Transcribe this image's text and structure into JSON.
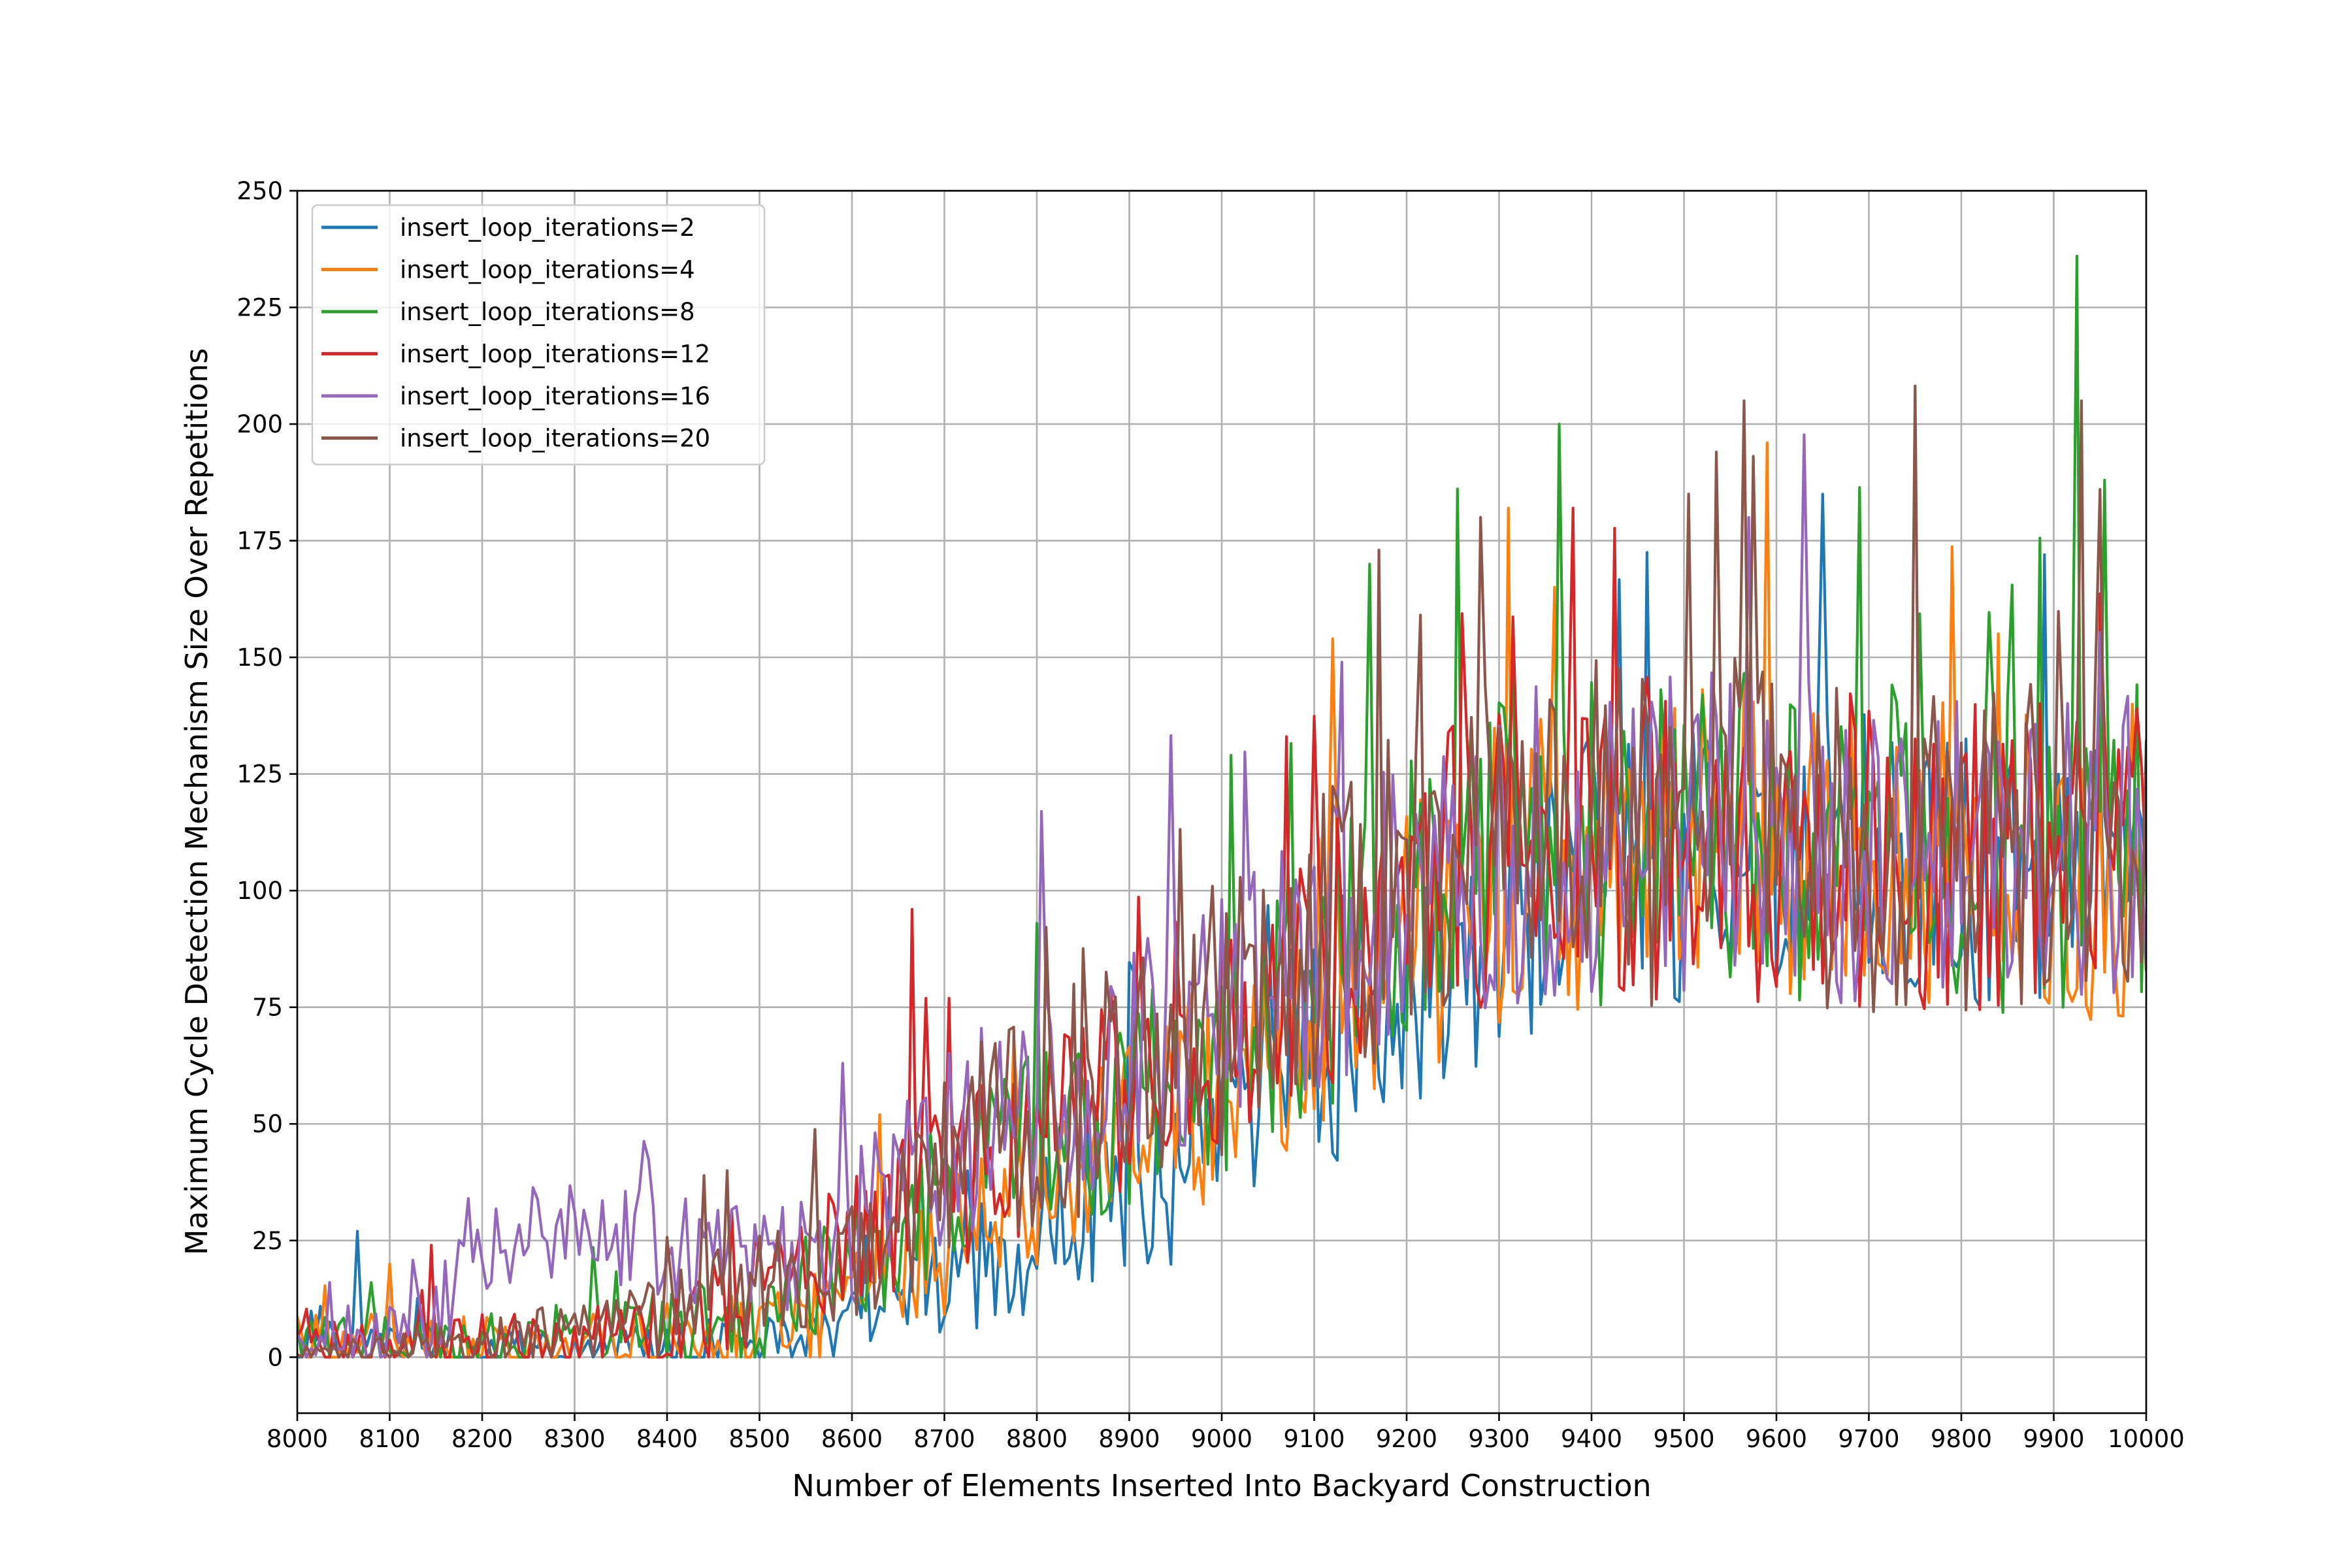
{
  "chart_data": {
    "type": "line",
    "title": "",
    "xlabel": "Number of Elements Inserted Into Backyard Construction",
    "ylabel": "Maximum Cycle Detection Mechanism Size Over Repetitions",
    "xlim": [
      8000,
      10000
    ],
    "ylim": [
      -12,
      250
    ],
    "x_ticks": [
      "8000",
      "8100",
      "8200",
      "8300",
      "8400",
      "8500",
      "8600",
      "8700",
      "8800",
      "8900",
      "9000",
      "9100",
      "9200",
      "9300",
      "9400",
      "9500",
      "9600",
      "9700",
      "9800",
      "9900",
      "10000"
    ],
    "y_ticks": [
      "0",
      "25",
      "50",
      "75",
      "100",
      "125",
      "150",
      "175",
      "200",
      "225",
      "250"
    ],
    "grid": true,
    "legend_position": "top-left",
    "x_step": 5,
    "series": [
      {
        "name": "insert_loop_iterations=2",
        "color": "#1f77b4",
        "anchors": [
          [
            8000,
            3
          ],
          [
            8100,
            2
          ],
          [
            8200,
            1
          ],
          [
            8300,
            1
          ],
          [
            8400,
            1
          ],
          [
            8500,
            2
          ],
          [
            8600,
            6
          ],
          [
            8650,
            10
          ],
          [
            8700,
            15
          ],
          [
            8750,
            22
          ],
          [
            8800,
            27
          ],
          [
            8850,
            33
          ],
          [
            8900,
            37
          ],
          [
            8950,
            42
          ],
          [
            9000,
            52
          ],
          [
            9050,
            60
          ],
          [
            9100,
            66
          ],
          [
            9150,
            73
          ],
          [
            9200,
            80
          ],
          [
            9250,
            88
          ],
          [
            9300,
            95
          ],
          [
            9350,
            100
          ],
          [
            9400,
            104
          ],
          [
            9500,
            107
          ],
          [
            9600,
            108
          ],
          [
            9700,
            106
          ],
          [
            9800,
            105
          ],
          [
            9900,
            104
          ],
          [
            10000,
            104
          ]
        ],
        "amp": [
          [
            8000,
            5
          ],
          [
            8160,
            5
          ],
          [
            8600,
            8
          ],
          [
            8700,
            14
          ],
          [
            9000,
            24
          ],
          [
            9300,
            32
          ],
          [
            10000,
            32
          ]
        ],
        "peaks": [
          [
            8065,
            27
          ],
          [
            9890,
            172
          ]
        ]
      },
      {
        "name": "insert_loop_iterations=4",
        "color": "#ff7f0e",
        "anchors": [
          [
            8000,
            3
          ],
          [
            8100,
            3
          ],
          [
            8200,
            2
          ],
          [
            8300,
            2
          ],
          [
            8400,
            3
          ],
          [
            8500,
            5
          ],
          [
            8600,
            12
          ],
          [
            8650,
            18
          ],
          [
            8700,
            24
          ],
          [
            8750,
            30
          ],
          [
            8800,
            36
          ],
          [
            8850,
            42
          ],
          [
            8900,
            47
          ],
          [
            8950,
            52
          ],
          [
            9000,
            60
          ],
          [
            9050,
            66
          ],
          [
            9100,
            74
          ],
          [
            9150,
            82
          ],
          [
            9200,
            90
          ],
          [
            9250,
            97
          ],
          [
            9300,
            103
          ],
          [
            9350,
            106
          ],
          [
            9400,
            108
          ],
          [
            9500,
            110
          ],
          [
            9600,
            110
          ],
          [
            9700,
            108
          ],
          [
            9800,
            107
          ],
          [
            9900,
            106
          ],
          [
            10000,
            106
          ]
        ],
        "amp": [
          [
            8000,
            6
          ],
          [
            8600,
            10
          ],
          [
            8700,
            15
          ],
          [
            9000,
            25
          ],
          [
            9300,
            34
          ],
          [
            10000,
            34
          ]
        ],
        "peaks": [
          [
            8100,
            20
          ],
          [
            8630,
            52
          ],
          [
            9120,
            154
          ],
          [
            9310,
            182
          ],
          [
            9590,
            196
          ]
        ]
      },
      {
        "name": "insert_loop_iterations=8",
        "color": "#2ca02c",
        "anchors": [
          [
            8000,
            3
          ],
          [
            8100,
            3
          ],
          [
            8200,
            2
          ],
          [
            8300,
            2
          ],
          [
            8400,
            4
          ],
          [
            8500,
            8
          ],
          [
            8600,
            18
          ],
          [
            8650,
            26
          ],
          [
            8700,
            34
          ],
          [
            8750,
            40
          ],
          [
            8800,
            46
          ],
          [
            8850,
            50
          ],
          [
            8900,
            54
          ],
          [
            8950,
            58
          ],
          [
            9000,
            65
          ],
          [
            9050,
            72
          ],
          [
            9100,
            80
          ],
          [
            9150,
            88
          ],
          [
            9200,
            96
          ],
          [
            9250,
            102
          ],
          [
            9300,
            106
          ],
          [
            9350,
            109
          ],
          [
            9400,
            110
          ],
          [
            9500,
            112
          ],
          [
            9600,
            112
          ],
          [
            9700,
            110
          ],
          [
            9800,
            109
          ],
          [
            9900,
            108
          ],
          [
            10000,
            108
          ]
        ],
        "amp": [
          [
            8000,
            6
          ],
          [
            8600,
            14
          ],
          [
            8700,
            18
          ],
          [
            9000,
            26
          ],
          [
            9300,
            35
          ],
          [
            10000,
            35
          ]
        ],
        "peaks": [
          [
            8080,
            16
          ],
          [
            8800,
            93
          ],
          [
            9010,
            129
          ],
          [
            9160,
            170
          ],
          [
            9365,
            200
          ],
          [
            9925,
            236
          ],
          [
            9955,
            188
          ]
        ]
      },
      {
        "name": "insert_loop_iterations=12",
        "color": "#d62728",
        "anchors": [
          [
            8000,
            2
          ],
          [
            8100,
            2
          ],
          [
            8200,
            2
          ],
          [
            8300,
            3
          ],
          [
            8400,
            6
          ],
          [
            8500,
            14
          ],
          [
            8600,
            24
          ],
          [
            8650,
            30
          ],
          [
            8700,
            36
          ],
          [
            8750,
            42
          ],
          [
            8800,
            48
          ],
          [
            8850,
            53
          ],
          [
            8900,
            58
          ],
          [
            8950,
            63
          ],
          [
            9000,
            72
          ],
          [
            9050,
            78
          ],
          [
            9100,
            86
          ],
          [
            9150,
            92
          ],
          [
            9200,
            99
          ],
          [
            9250,
            104
          ],
          [
            9300,
            107
          ],
          [
            9350,
            110
          ],
          [
            9400,
            111
          ],
          [
            9500,
            112
          ],
          [
            9600,
            111
          ],
          [
            9700,
            110
          ],
          [
            9800,
            109
          ],
          [
            9900,
            108
          ],
          [
            10000,
            107
          ]
        ],
        "amp": [
          [
            8000,
            6
          ],
          [
            8300,
            8
          ],
          [
            8600,
            14
          ],
          [
            8700,
            18
          ],
          [
            9000,
            26
          ],
          [
            9300,
            35
          ],
          [
            10000,
            35
          ]
        ],
        "peaks": [
          [
            8145,
            24
          ],
          [
            8665,
            96
          ],
          [
            9070,
            133
          ],
          [
            9380,
            182
          ]
        ]
      },
      {
        "name": "insert_loop_iterations=16",
        "color": "#9467bd",
        "anchors": [
          [
            8000,
            4
          ],
          [
            8100,
            4
          ],
          [
            8170,
            8
          ],
          [
            8180,
            26
          ],
          [
            8200,
            26
          ],
          [
            8300,
            26
          ],
          [
            8400,
            24
          ],
          [
            8500,
            22
          ],
          [
            8560,
            22
          ],
          [
            8600,
            28
          ],
          [
            8650,
            38
          ],
          [
            8700,
            44
          ],
          [
            8750,
            50
          ],
          [
            8800,
            54
          ],
          [
            8850,
            58
          ],
          [
            8900,
            62
          ],
          [
            8950,
            66
          ],
          [
            9000,
            74
          ],
          [
            9050,
            80
          ],
          [
            9100,
            86
          ],
          [
            9150,
            92
          ],
          [
            9200,
            98
          ],
          [
            9250,
            104
          ],
          [
            9300,
            108
          ],
          [
            9350,
            110
          ],
          [
            9400,
            111
          ],
          [
            9500,
            112
          ],
          [
            9600,
            112
          ],
          [
            9700,
            110
          ],
          [
            9800,
            109
          ],
          [
            9900,
            108
          ],
          [
            10000,
            108
          ]
        ],
        "amp": [
          [
            8000,
            6
          ],
          [
            8180,
            12
          ],
          [
            8560,
            12
          ],
          [
            8600,
            18
          ],
          [
            8700,
            22
          ],
          [
            9000,
            28
          ],
          [
            9300,
            35
          ],
          [
            10000,
            35
          ]
        ],
        "peaks": [
          [
            8035,
            16
          ],
          [
            8590,
            63
          ],
          [
            8805,
            117
          ],
          [
            9130,
            149
          ],
          [
            9570,
            180
          ]
        ]
      },
      {
        "name": "insert_loop_iterations=20",
        "color": "#8c564b",
        "anchors": [
          [
            8000,
            1
          ],
          [
            8100,
            1
          ],
          [
            8200,
            2
          ],
          [
            8300,
            6
          ],
          [
            8400,
            10
          ],
          [
            8500,
            14
          ],
          [
            8600,
            22
          ],
          [
            8650,
            30
          ],
          [
            8700,
            40
          ],
          [
            8750,
            46
          ],
          [
            8800,
            52
          ],
          [
            8850,
            56
          ],
          [
            8900,
            60
          ],
          [
            8950,
            65
          ],
          [
            9000,
            73
          ],
          [
            9050,
            80
          ],
          [
            9100,
            88
          ],
          [
            9150,
            95
          ],
          [
            9200,
            102
          ],
          [
            9250,
            106
          ],
          [
            9300,
            109
          ],
          [
            9350,
            111
          ],
          [
            9400,
            112
          ],
          [
            9500,
            113
          ],
          [
            9600,
            112
          ],
          [
            9700,
            111
          ],
          [
            9800,
            110
          ],
          [
            9900,
            109
          ],
          [
            10000,
            109
          ]
        ],
        "amp": [
          [
            8000,
            3
          ],
          [
            8300,
            8
          ],
          [
            8600,
            14
          ],
          [
            8700,
            22
          ],
          [
            9000,
            30
          ],
          [
            9300,
            38
          ],
          [
            10000,
            38
          ]
        ],
        "peaks": [
          [
            8465,
            40
          ],
          [
            9170,
            173
          ],
          [
            9280,
            180
          ],
          [
            9505,
            185
          ],
          [
            9535,
            194
          ],
          [
            9565,
            205
          ],
          [
            9930,
            205
          ],
          [
            9950,
            186
          ]
        ]
      }
    ]
  }
}
